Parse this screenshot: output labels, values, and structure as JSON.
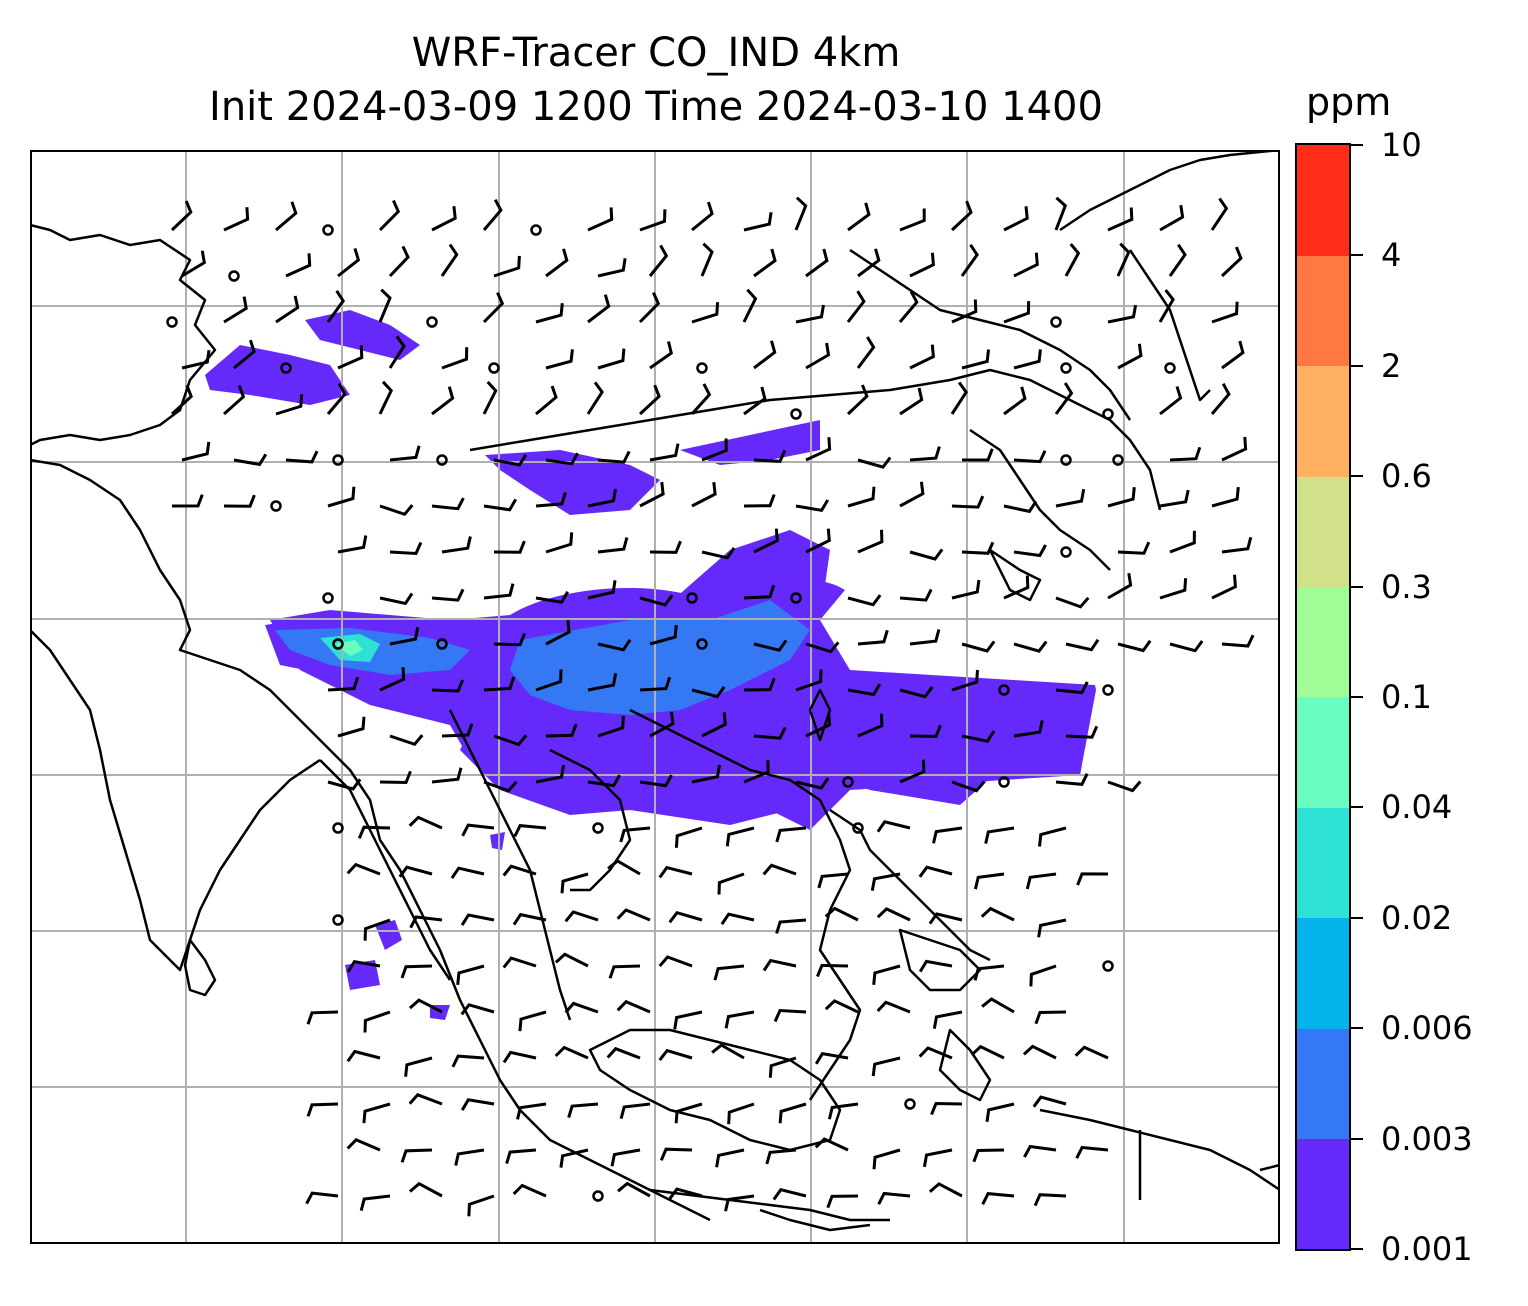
{
  "title": {
    "line1": "WRF-Tracer CO_IND 4km",
    "line2": "Init 2024-03-09 1200 Time 2024-03-10 1400"
  },
  "colorbar": {
    "units": "ppm",
    "levels": [
      "0.001",
      "0.003",
      "0.006",
      "0.02",
      "0.04",
      "0.1",
      "0.3",
      "0.6",
      "2",
      "4",
      "10"
    ],
    "colors": [
      "#6529fa",
      "#3478f3",
      "#03b3ea",
      "#2de1d4",
      "#6afcc0",
      "#a1fc98",
      "#d1e18a",
      "#ffb060",
      "#ff7843",
      "#ff2c1a"
    ]
  },
  "map": {
    "gridline_color": "#b0b0b0",
    "coastline_color": "#000000",
    "wind_barb_color": "#000000",
    "plume_colors": {
      "low": "#6529fa",
      "mid": "#3478f3",
      "high": "#2de1d4",
      "peak": "#6afcc0"
    }
  }
}
